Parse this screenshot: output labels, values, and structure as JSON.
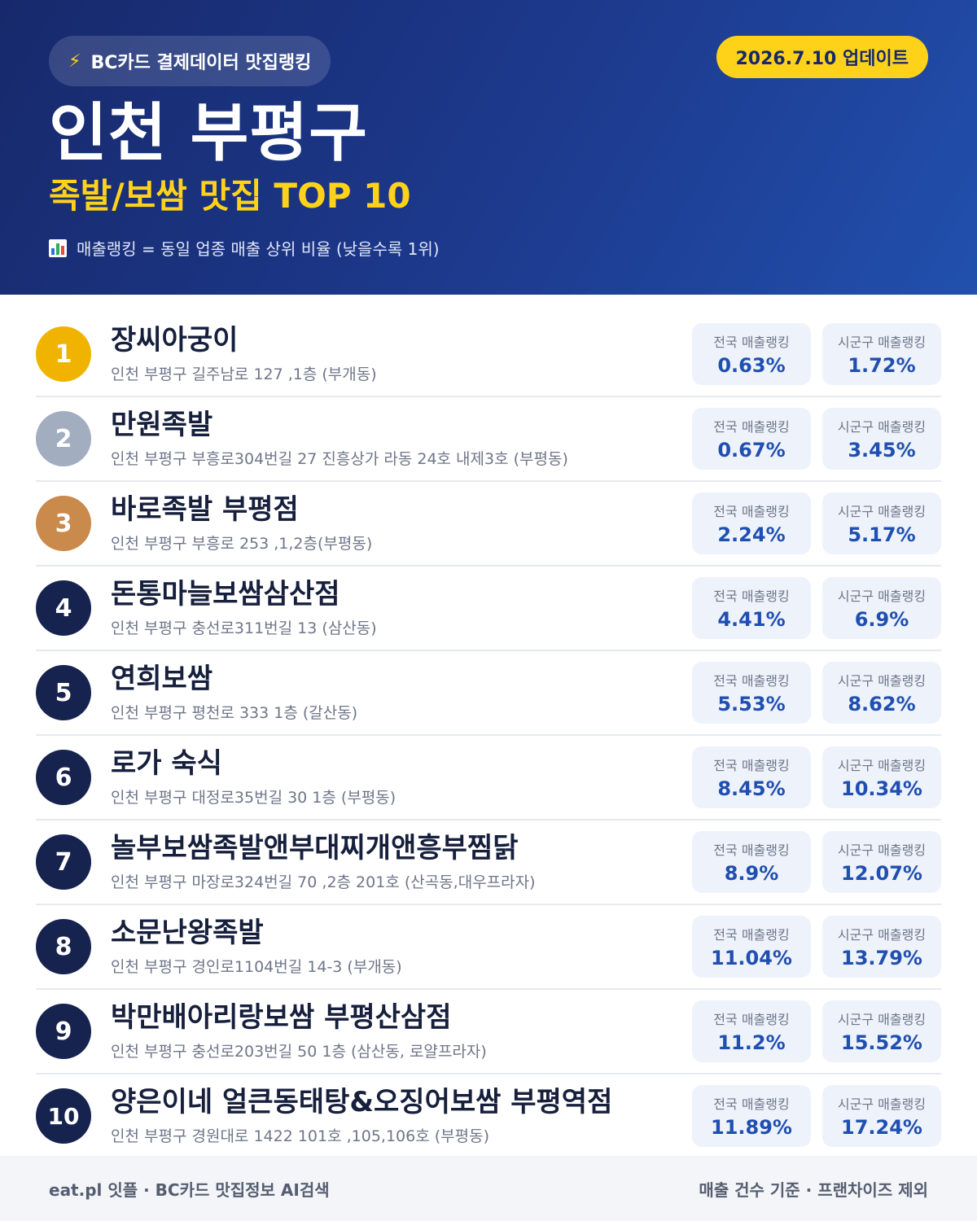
{
  "header": {
    "brand": "BC카드 결제데이터 맛집랭킹",
    "update": "2026.7.10 업데이트",
    "region": "인천 부평구",
    "category": "족발/보쌈 맛집 TOP 10",
    "rank_note": "매출랭킹 = 동일 업종 매출 상위 비율 (낮을수록 1위)"
  },
  "labels": {
    "national": "전국 매출랭킹",
    "district": "시군구 매출랭킹"
  },
  "restaurants": [
    {
      "rank": "1",
      "name": "장씨아궁이",
      "address": "인천 부평구 길주남로 127 ,1층 (부개동)",
      "national": "0.63%",
      "district": "1.72%"
    },
    {
      "rank": "2",
      "name": "만원족발",
      "address": "인천 부평구 부흥로304번길 27 진흥상가 라동 24호 내제3호 (부평동)",
      "national": "0.67%",
      "district": "3.45%"
    },
    {
      "rank": "3",
      "name": "바로족발 부평점",
      "address": "인천 부평구 부흥로 253 ,1,2층(부평동)",
      "national": "2.24%",
      "district": "5.17%"
    },
    {
      "rank": "4",
      "name": "돈통마늘보쌈삼산점",
      "address": "인천 부평구 충선로311번길 13 (삼산동)",
      "national": "4.41%",
      "district": "6.9%"
    },
    {
      "rank": "5",
      "name": "연희보쌈",
      "address": "인천 부평구 평천로 333 1층 (갈산동)",
      "national": "5.53%",
      "district": "8.62%"
    },
    {
      "rank": "6",
      "name": "로가 숙식",
      "address": "인천 부평구 대정로35번길 30 1층 (부평동)",
      "national": "8.45%",
      "district": "10.34%"
    },
    {
      "rank": "7",
      "name": "놀부보쌈족발앤부대찌개앤흥부찜닭",
      "address": "인천 부평구 마장로324번길 70 ,2층 201호 (산곡동,대우프라자)",
      "national": "8.9%",
      "district": "12.07%"
    },
    {
      "rank": "8",
      "name": "소문난왕족발",
      "address": "인천 부평구 경인로1104번길 14-3 (부개동)",
      "national": "11.04%",
      "district": "13.79%"
    },
    {
      "rank": "9",
      "name": "박만배아리랑보쌈 부평산삼점",
      "address": "인천 부평구 충선로203번길 50 1층 (삼산동, 로얄프라자)",
      "national": "11.2%",
      "district": "15.52%"
    },
    {
      "rank": "10",
      "name": "양은이네 얼큰동태탕&오징어보쌈 부평역점",
      "address": "인천 부평구 경원대로 1422 101호 ,105,106호 (부평동)",
      "national": "11.89%",
      "district": "17.24%"
    }
  ],
  "footer": {
    "left": "eat.pl 잇플 · BC카드 맛집정보 AI검색",
    "right": "매출 건수 기준 · 프랜차이즈 제외"
  },
  "colors": {
    "gold": "#f0b400",
    "silver": "#a2adc0",
    "bronze": "#c98a4b",
    "navy": "#17234f",
    "accent_yellow": "#ffd21a",
    "value_blue": "#1f4fb0"
  },
  "icons": {
    "brand": "lightning-icon",
    "note": "bar-chart-icon"
  }
}
